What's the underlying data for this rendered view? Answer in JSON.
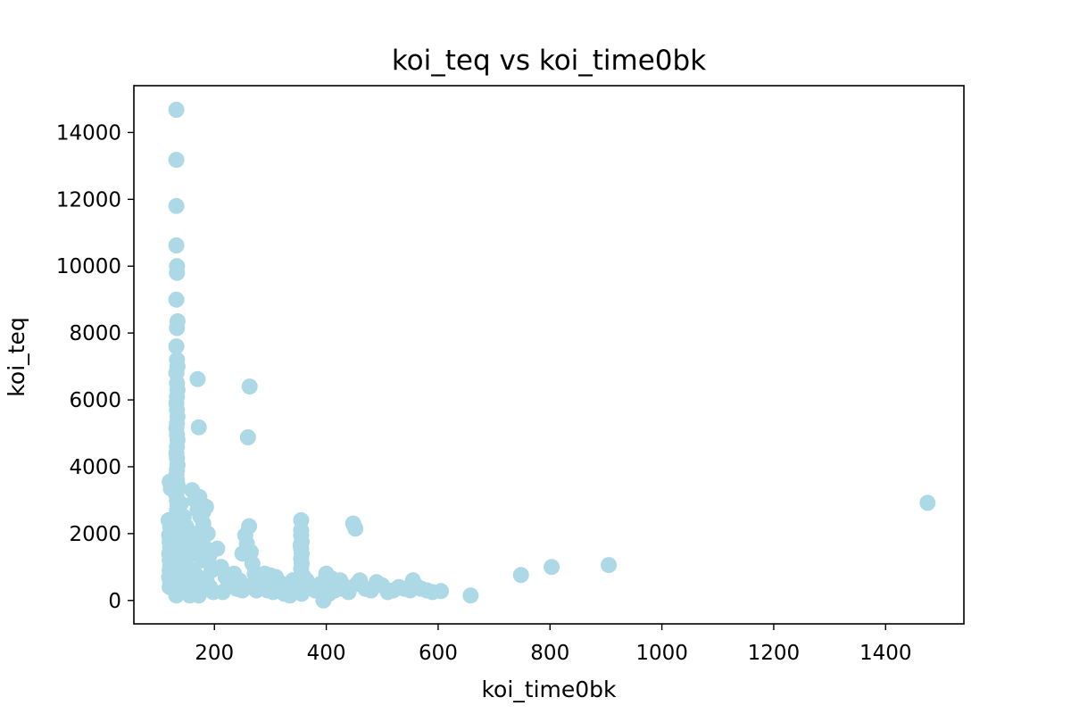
{
  "chart_data": {
    "type": "scatter",
    "title": "koi_teq vs koi_time0bk",
    "xlabel": "koi_time0bk",
    "ylabel": "koi_teq",
    "xlim": [
      56,
      1540
    ],
    "ylim": [
      -700,
      15400
    ],
    "xticks": [
      200,
      400,
      600,
      800,
      1000,
      1200,
      1400
    ],
    "yticks": [
      0,
      2000,
      4000,
      6000,
      8000,
      10000,
      12000,
      14000
    ],
    "grid": false,
    "marker_color": "#add8e6",
    "series": [
      {
        "points": [
          [
            132,
            14680
          ],
          [
            132,
            13180
          ],
          [
            132,
            11800
          ],
          [
            132,
            10620
          ],
          [
            133,
            10000
          ],
          [
            133,
            9800
          ],
          [
            132,
            9000
          ],
          [
            134,
            8350
          ],
          [
            133,
            8150
          ],
          [
            132,
            7600
          ],
          [
            133,
            7200
          ],
          [
            134,
            7000
          ],
          [
            132,
            6800
          ],
          [
            133,
            6500
          ],
          [
            134,
            6300
          ],
          [
            133,
            6100
          ],
          [
            132,
            5900
          ],
          [
            133,
            5700
          ],
          [
            134,
            5500
          ],
          [
            133,
            5300
          ],
          [
            132,
            5150
          ],
          [
            133,
            4950
          ],
          [
            134,
            4800
          ],
          [
            133,
            4600
          ],
          [
            132,
            4400
          ],
          [
            133,
            4250
          ],
          [
            134,
            4050
          ],
          [
            133,
            3900
          ],
          [
            132,
            3750
          ],
          [
            133,
            3600
          ],
          [
            134,
            3450
          ],
          [
            133,
            3300
          ],
          [
            132,
            3150
          ],
          [
            133,
            3000
          ],
          [
            134,
            2850
          ],
          [
            133,
            2700
          ],
          [
            132,
            2550
          ],
          [
            133,
            2400
          ],
          [
            134,
            2250
          ],
          [
            133,
            2100
          ],
          [
            132,
            1950
          ],
          [
            133,
            1800
          ],
          [
            134,
            1650
          ],
          [
            133,
            1500
          ],
          [
            132,
            1350
          ],
          [
            133,
            1200
          ],
          [
            134,
            1050
          ],
          [
            133,
            900
          ],
          [
            132,
            750
          ],
          [
            133,
            600
          ],
          [
            134,
            450
          ],
          [
            133,
            300
          ],
          [
            132,
            150
          ],
          [
            120,
            3550
          ],
          [
            122,
            3350
          ],
          [
            118,
            2400
          ],
          [
            121,
            2200
          ],
          [
            119,
            1950
          ],
          [
            120,
            1750
          ],
          [
            121,
            1600
          ],
          [
            119,
            1400
          ],
          [
            120,
            1200
          ],
          [
            121,
            1050
          ],
          [
            120,
            900
          ],
          [
            119,
            700
          ],
          [
            121,
            550
          ],
          [
            120,
            400
          ],
          [
            140,
            2900
          ],
          [
            145,
            2500
          ],
          [
            150,
            2200
          ],
          [
            142,
            1900
          ],
          [
            148,
            1600
          ],
          [
            152,
            1300
          ],
          [
            146,
            1000
          ],
          [
            155,
            800
          ],
          [
            141,
            600
          ],
          [
            149,
            400
          ],
          [
            143,
            250
          ],
          [
            156,
            150
          ],
          [
            160,
            3300
          ],
          [
            165,
            3000
          ],
          [
            170,
            2700
          ],
          [
            175,
            2500
          ],
          [
            180,
            2300
          ],
          [
            162,
            2000
          ],
          [
            168,
            1800
          ],
          [
            174,
            1500
          ],
          [
            178,
            1200
          ],
          [
            163,
            900
          ],
          [
            171,
            700
          ],
          [
            177,
            500
          ],
          [
            166,
            300
          ],
          [
            172,
            150
          ],
          [
            185,
            2800
          ],
          [
            180,
            2650
          ],
          [
            188,
            2000
          ],
          [
            182,
            1600
          ],
          [
            190,
            1300
          ],
          [
            195,
            900
          ],
          [
            186,
            600
          ],
          [
            192,
            400
          ],
          [
            198,
            250
          ],
          [
            173,
            3100
          ],
          [
            176,
            2900
          ],
          [
            170,
            6620
          ],
          [
            172,
            5180
          ],
          [
            263,
            6400
          ],
          [
            260,
            4880
          ],
          [
            205,
            1550
          ],
          [
            212,
            1000
          ],
          [
            220,
            700
          ],
          [
            230,
            500
          ],
          [
            240,
            350
          ],
          [
            250,
            300
          ],
          [
            215,
            250
          ],
          [
            225,
            450
          ],
          [
            235,
            800
          ],
          [
            245,
            600
          ],
          [
            255,
            1950
          ],
          [
            262,
            2220
          ],
          [
            258,
            1700
          ],
          [
            265,
            1450
          ],
          [
            250,
            1400
          ],
          [
            268,
            1100
          ],
          [
            272,
            800
          ],
          [
            270,
            500
          ],
          [
            275,
            300
          ],
          [
            280,
            650
          ],
          [
            290,
            800
          ],
          [
            300,
            750
          ],
          [
            310,
            700
          ],
          [
            320,
            500
          ],
          [
            330,
            400
          ],
          [
            295,
            300
          ],
          [
            305,
            250
          ],
          [
            315,
            350
          ],
          [
            325,
            200
          ],
          [
            335,
            150
          ],
          [
            285,
            450
          ],
          [
            340,
            600
          ],
          [
            345,
            300
          ],
          [
            355,
            2400
          ],
          [
            355,
            2100
          ],
          [
            355,
            1950
          ],
          [
            356,
            1750
          ],
          [
            355,
            1550
          ],
          [
            356,
            1400
          ],
          [
            355,
            1250
          ],
          [
            356,
            1100
          ],
          [
            355,
            950
          ],
          [
            356,
            800
          ],
          [
            355,
            650
          ],
          [
            356,
            500
          ],
          [
            355,
            350
          ],
          [
            356,
            200
          ],
          [
            354,
            1650
          ],
          [
            360,
            700
          ],
          [
            365,
            600
          ],
          [
            370,
            450
          ],
          [
            380,
            300
          ],
          [
            390,
            500
          ],
          [
            395,
            0
          ],
          [
            400,
            800
          ],
          [
            410,
            650
          ],
          [
            420,
            500
          ],
          [
            430,
            350
          ],
          [
            440,
            250
          ],
          [
            405,
            200
          ],
          [
            415,
            300
          ],
          [
            425,
            600
          ],
          [
            435,
            400
          ],
          [
            448,
            2300
          ],
          [
            452,
            2150
          ],
          [
            455,
            500
          ],
          [
            460,
            600
          ],
          [
            470,
            350
          ],
          [
            480,
            300
          ],
          [
            490,
            550
          ],
          [
            500,
            450
          ],
          [
            510,
            250
          ],
          [
            520,
            300
          ],
          [
            530,
            400
          ],
          [
            540,
            350
          ],
          [
            550,
            300
          ],
          [
            555,
            600
          ],
          [
            560,
            450
          ],
          [
            570,
            350
          ],
          [
            580,
            300
          ],
          [
            590,
            250
          ],
          [
            605,
            280
          ],
          [
            658,
            150
          ],
          [
            748,
            760
          ],
          [
            803,
            1000
          ],
          [
            905,
            1060
          ],
          [
            1475,
            2920
          ]
        ]
      }
    ]
  }
}
